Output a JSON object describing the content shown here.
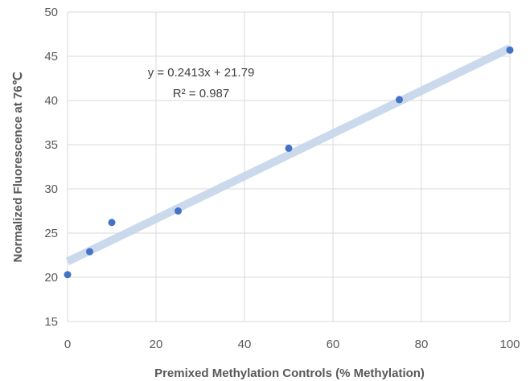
{
  "chart_data": {
    "type": "scatter",
    "title": "",
    "xlabel": "Premixed Methylation Controls (% Methylation)",
    "ylabel": "Normalized Fluorescence at 76℃",
    "xlim": [
      0,
      100
    ],
    "ylim": [
      15,
      50
    ],
    "xticks": [
      0,
      20,
      40,
      60,
      80,
      100
    ],
    "yticks": [
      15,
      20,
      25,
      30,
      35,
      40,
      45,
      50
    ],
    "grid": true,
    "legend": "none",
    "series": [
      {
        "x": [
          0,
          5,
          10,
          25,
          50,
          75,
          100
        ],
        "y": [
          20.3,
          22.9,
          26.2,
          27.5,
          34.6,
          40.1,
          45.7
        ],
        "color": "#4472C4"
      }
    ],
    "trendline": {
      "type": "linear",
      "slope": 0.2413,
      "intercept": 21.79,
      "color": "#C5D6EB",
      "equation_label": "y = 0.2413x + 21.79",
      "r2_label": "R² = 0.987"
    }
  }
}
